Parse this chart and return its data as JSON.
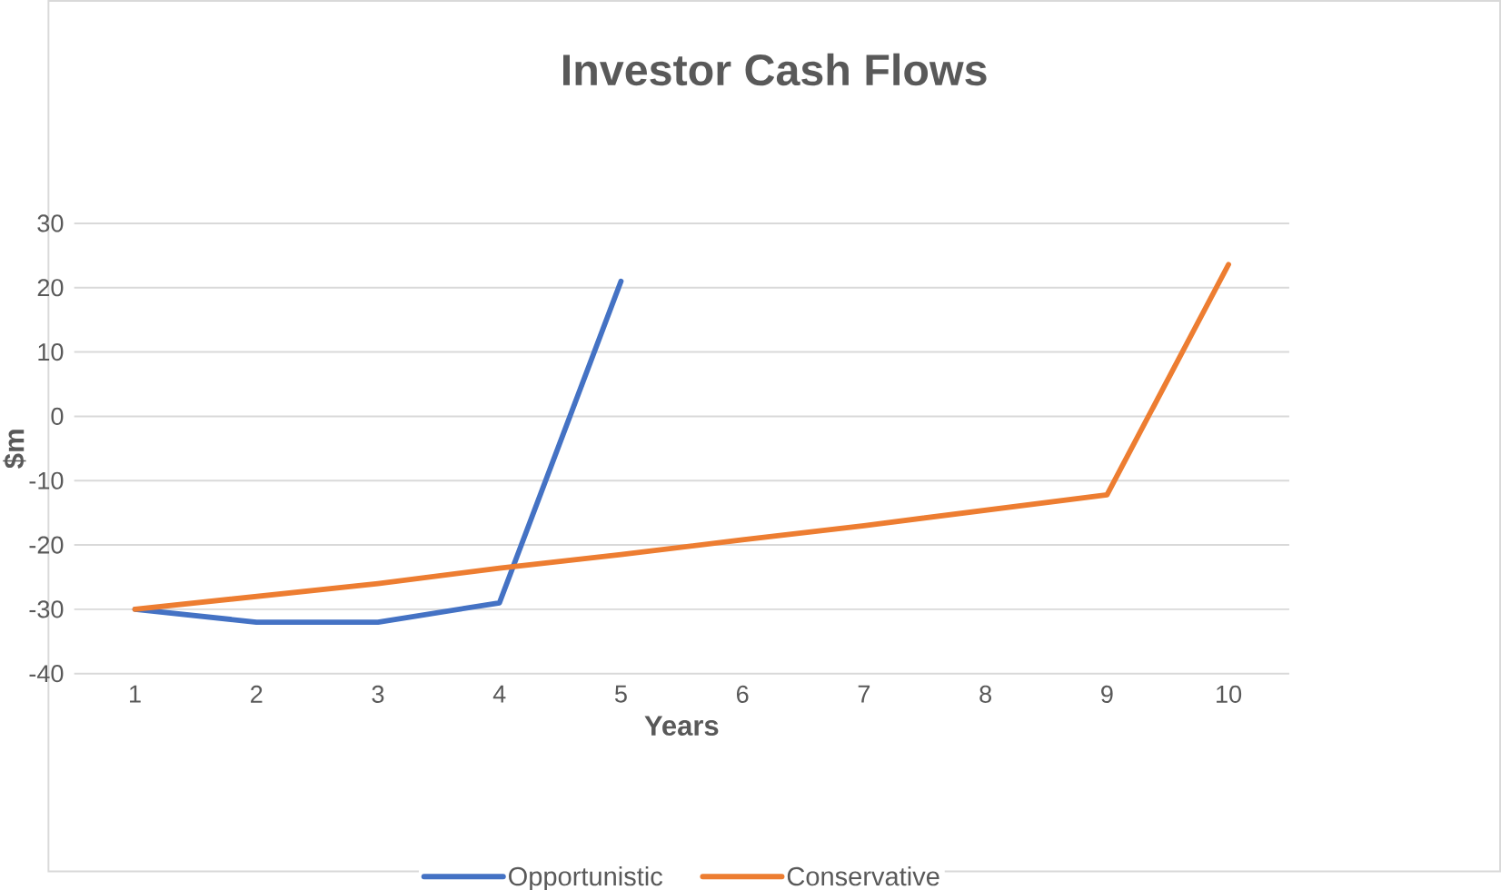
{
  "chart_data": {
    "type": "line",
    "title": "Investor Cash Flows",
    "xlabel": "Years",
    "ylabel": "$m",
    "categories": [
      "1",
      "2",
      "3",
      "4",
      "5",
      "6",
      "7",
      "8",
      "9",
      "10"
    ],
    "series": [
      {
        "name": "Opportunistic",
        "color": "#4472c4",
        "values": [
          -30,
          -32,
          -32,
          -29,
          21,
          null,
          null,
          null,
          null,
          null
        ]
      },
      {
        "name": "Conservative",
        "color": "#ed7d31",
        "values": [
          -30,
          -28,
          -26,
          -23.6,
          -21.5,
          -19.2,
          -17,
          -14.6,
          -12.2,
          23.6
        ]
      }
    ],
    "ylim": [
      -40,
      30
    ],
    "yticks": [
      -40,
      -30,
      -20,
      -10,
      0,
      10,
      20,
      30
    ],
    "grid": "y",
    "legend": "bottom"
  }
}
